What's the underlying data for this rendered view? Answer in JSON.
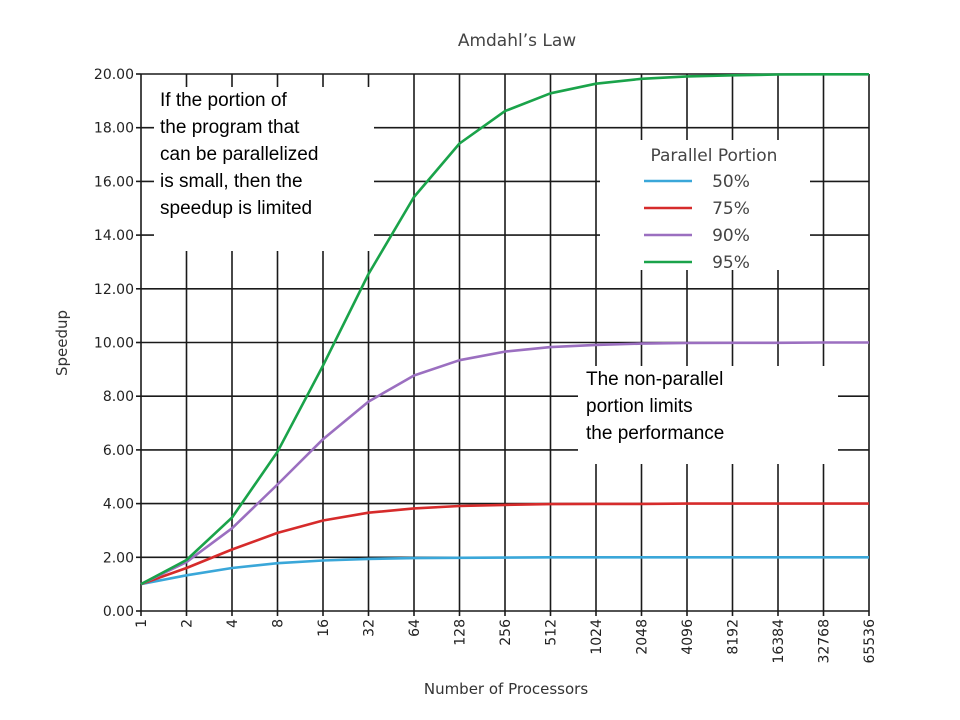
{
  "chart_data": {
    "type": "line",
    "title": "Amdahl’s Law",
    "xlabel": "Number of Processors",
    "ylabel": "Speedup",
    "x_scale": "log2",
    "categories": [
      "1",
      "2",
      "4",
      "8",
      "16",
      "32",
      "64",
      "128",
      "256",
      "512",
      "1024",
      "2048",
      "4096",
      "8192",
      "16384",
      "32768",
      "65536"
    ],
    "y_ticks": [
      "0.00",
      "2.00",
      "4.00",
      "6.00",
      "8.00",
      "10.00",
      "12.00",
      "14.00",
      "16.00",
      "18.00",
      "20.00"
    ],
    "ylim": [
      0,
      20
    ],
    "grid": true,
    "legend": {
      "title": "Parallel Portion",
      "placement": "right"
    },
    "series": [
      {
        "name": "50%",
        "color": "#3aa7d9",
        "values": [
          1.0,
          1.33,
          1.6,
          1.78,
          1.88,
          1.94,
          1.97,
          1.98,
          1.99,
          2.0,
          2.0,
          2.0,
          2.0,
          2.0,
          2.0,
          2.0,
          2.0
        ]
      },
      {
        "name": "75%",
        "color": "#d62b2b",
        "values": [
          1.0,
          1.6,
          2.29,
          2.91,
          3.37,
          3.66,
          3.82,
          3.91,
          3.95,
          3.98,
          3.99,
          3.99,
          4.0,
          4.0,
          4.0,
          4.0,
          4.0
        ]
      },
      {
        "name": "90%",
        "color": "#9b6fc0",
        "values": [
          1.0,
          1.82,
          3.08,
          4.71,
          6.4,
          7.8,
          8.77,
          9.34,
          9.66,
          9.83,
          9.91,
          9.96,
          9.98,
          9.99,
          9.99,
          10.0,
          10.0
        ]
      },
      {
        "name": "95%",
        "color": "#1aa34a",
        "values": [
          1.0,
          1.9,
          3.48,
          5.93,
          9.14,
          12.55,
          15.42,
          17.41,
          18.62,
          19.28,
          19.64,
          19.82,
          19.91,
          19.95,
          19.98,
          19.99,
          19.99
        ]
      }
    ]
  },
  "annotations": {
    "left": "If the portion of\nthe program that\ncan be parallelized\nis small, then the\nspeedup is limited",
    "right": "The non-parallel\nportion limits\nthe performance"
  }
}
